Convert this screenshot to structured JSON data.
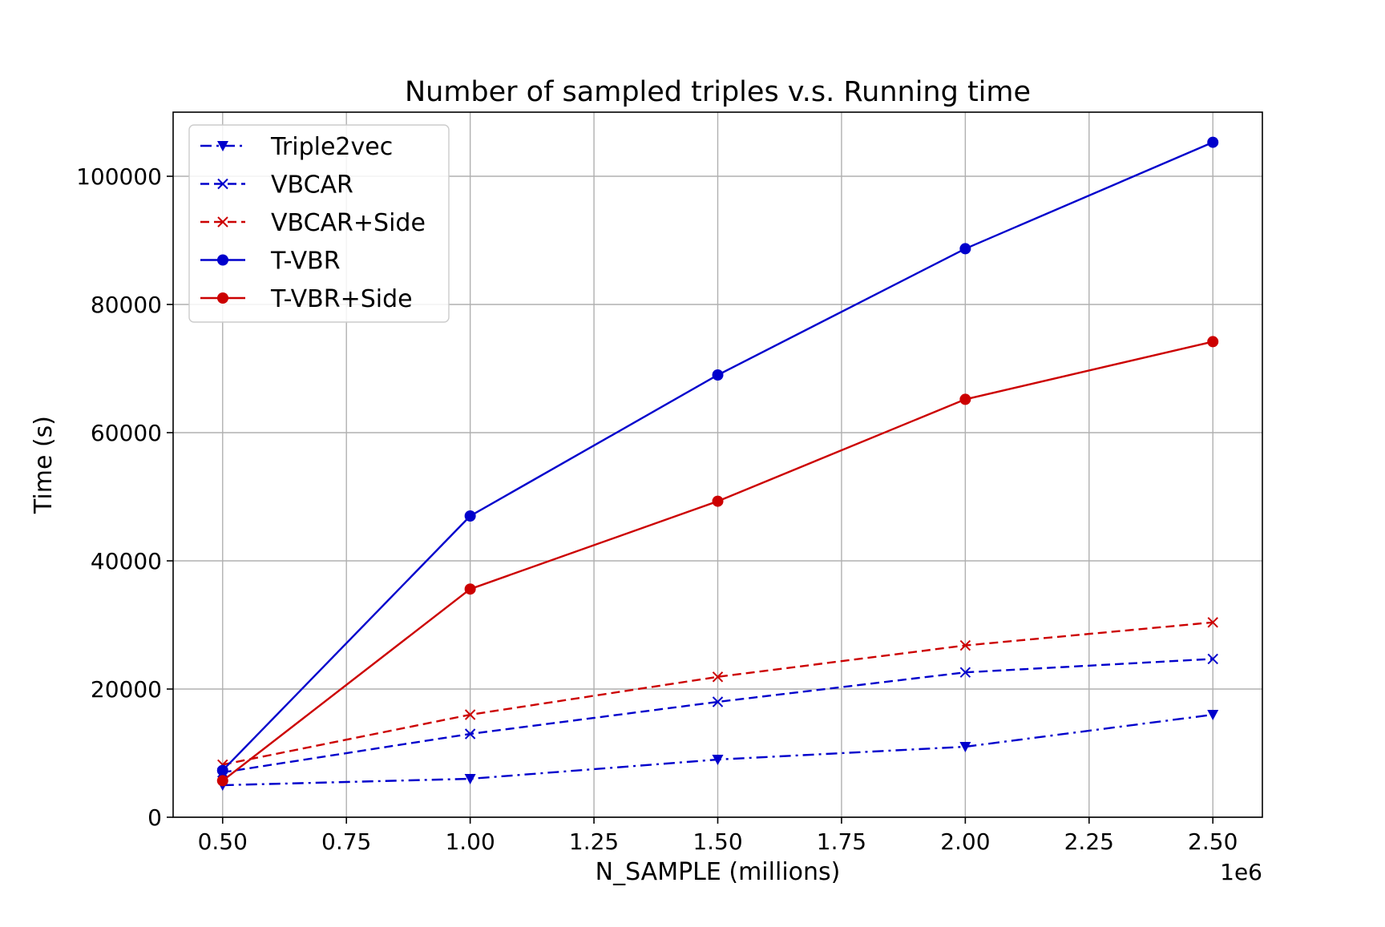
{
  "chart_data": {
    "type": "line",
    "title": "Number of sampled triples v.s. Running time",
    "xlabel": "N_SAMPLE (millions)",
    "ylabel": "Time (s)",
    "x_offset_label": "1e6",
    "xlim": [
      400000,
      2600000
    ],
    "ylim": [
      0,
      110000
    ],
    "xticks": [
      500000,
      750000,
      1000000,
      1250000,
      1500000,
      1750000,
      2000000,
      2250000,
      2500000
    ],
    "xtick_labels": [
      "0.50",
      "0.75",
      "1.00",
      "1.25",
      "1.50",
      "1.75",
      "2.00",
      "2.25",
      "2.50"
    ],
    "yticks": [
      0,
      20000,
      40000,
      60000,
      80000,
      100000
    ],
    "ytick_labels": [
      "0",
      "20000",
      "40000",
      "60000",
      "80000",
      "100000"
    ],
    "grid": true,
    "legend_position": "top-left",
    "x": [
      500000,
      1000000,
      1500000,
      2000000,
      2500000
    ],
    "series": [
      {
        "name": "Triple2vec",
        "color": "#0000cc",
        "dash": "dashdot",
        "marker": "triangle-down",
        "values": [
          5000,
          6000,
          9000,
          11000,
          16000
        ]
      },
      {
        "name": "VBCAR",
        "color": "#0000cc",
        "dash": "dashed",
        "marker": "x",
        "values": [
          7000,
          13000,
          18000,
          22600,
          24700
        ]
      },
      {
        "name": "VBCAR+Side",
        "color": "#cc0000",
        "dash": "dashed",
        "marker": "x",
        "values": [
          8200,
          16000,
          21900,
          26800,
          30400
        ]
      },
      {
        "name": "T-VBR",
        "color": "#0000cc",
        "dash": "solid",
        "marker": "circle",
        "values": [
          7300,
          47000,
          69000,
          88700,
          105300
        ]
      },
      {
        "name": "T-VBR+Side",
        "color": "#cc0000",
        "dash": "solid",
        "marker": "circle",
        "values": [
          5700,
          35600,
          49300,
          65200,
          74200
        ]
      }
    ]
  }
}
